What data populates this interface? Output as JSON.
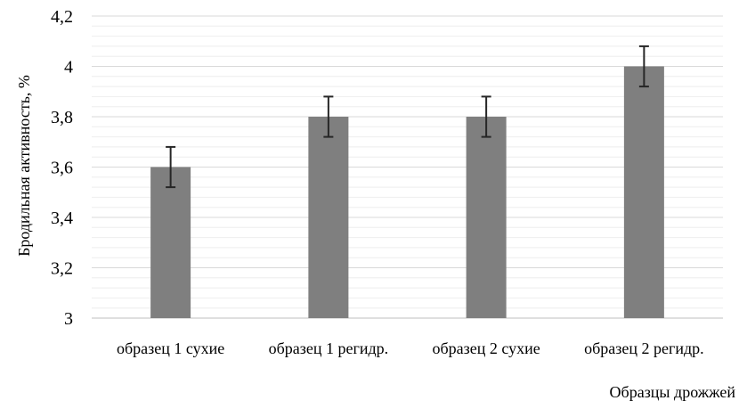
{
  "chart_data": {
    "type": "bar",
    "title": "",
    "xlabel": "Образцы дрожжей",
    "ylabel": "Бродильная активность, %",
    "categories": [
      "образец 1 сухие",
      "образец 1 регидр.",
      "образец 2 сухие",
      "образец 2 регидр."
    ],
    "values": [
      3.6,
      3.8,
      3.8,
      4.0
    ],
    "error": [
      0.08,
      0.08,
      0.08,
      0.08
    ],
    "ylim": [
      3,
      4.2
    ],
    "yticks": [
      3,
      3.2,
      3.4,
      3.6,
      3.8,
      4,
      4.2
    ],
    "ytick_labels": [
      "3",
      "3,2",
      "3,4",
      "3,6",
      "3,8",
      "4",
      "4,2"
    ],
    "grid": true,
    "minor_grid": true,
    "legend": "none",
    "colors": {
      "bar": "#7f7f7f",
      "error_bar": "#262626",
      "grid_major": "#d9d9d9",
      "grid_minor": "#eeeeee",
      "axis": "#bfbfbf"
    }
  }
}
